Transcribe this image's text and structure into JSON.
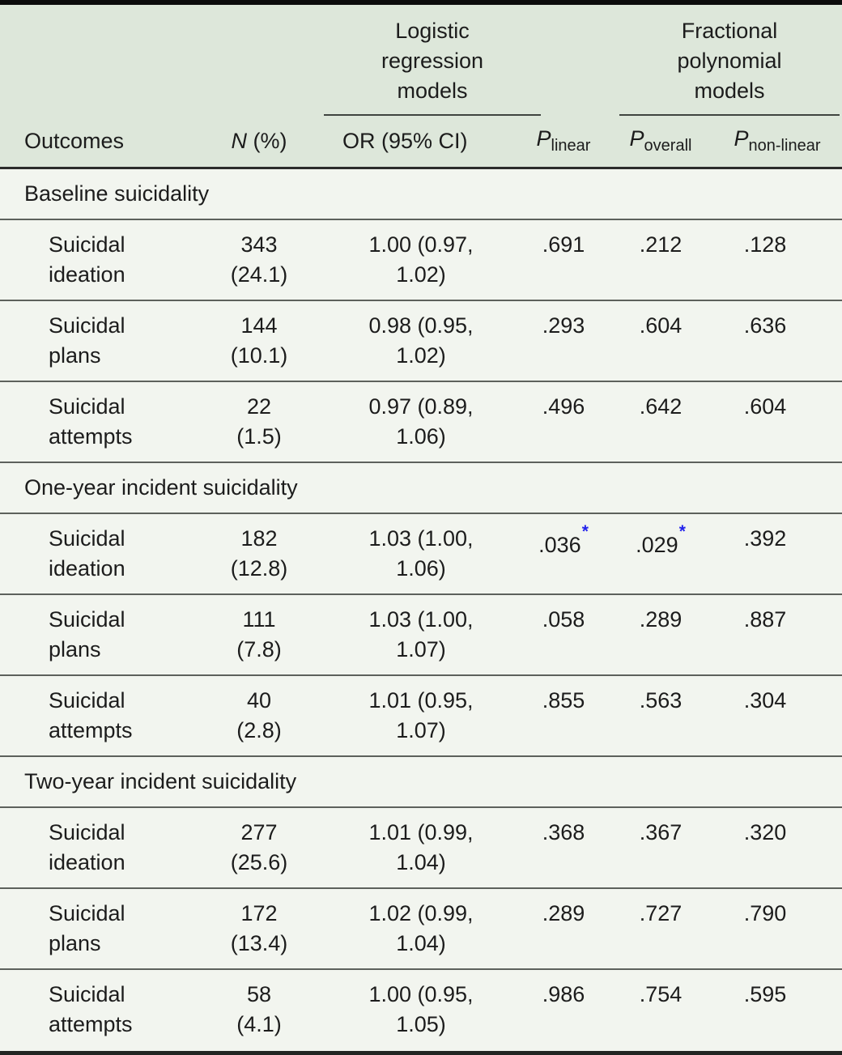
{
  "colors": {
    "header_bg": "#dde7da",
    "body_bg": "#f2f5ef",
    "significance_star": "#2323ec",
    "rule_dark": "#2b2b2b",
    "rule_row": "#5d615c"
  },
  "header": {
    "spanner_logistic": "Logistic regression models",
    "spanner_fractional": "Fractional polynomial models",
    "col_outcomes": "Outcomes",
    "col_n_italic": "N",
    "col_n_rest": " (%)",
    "col_or": "OR (95% CI)",
    "col_p_linear": {
      "base": "P",
      "sub": "linear"
    },
    "col_p_overall": {
      "base": "P",
      "sub": "overall"
    },
    "col_p_nonlinear": {
      "base": "P",
      "sub": "non-linear"
    }
  },
  "sections": [
    {
      "title": "Baseline suicidality",
      "rows": [
        {
          "outcome": "Suicidal ideation",
          "n_lines": [
            "343",
            "(24.1)"
          ],
          "or_lines": [
            "1.00 (0.97,",
            "1.02)"
          ],
          "p_linear": {
            "value": ".691",
            "sig": false
          },
          "p_overall": {
            "value": ".212",
            "sig": false
          },
          "p_nonlinear": {
            "value": ".128",
            "sig": false
          }
        },
        {
          "outcome": "Suicidal plans",
          "n_lines": [
            "144",
            "(10.1)"
          ],
          "or_lines": [
            "0.98 (0.95,",
            "1.02)"
          ],
          "p_linear": {
            "value": ".293",
            "sig": false
          },
          "p_overall": {
            "value": ".604",
            "sig": false
          },
          "p_nonlinear": {
            "value": ".636",
            "sig": false
          }
        },
        {
          "outcome": "Suicidal attempts",
          "n_lines": [
            "22",
            "(1.5)"
          ],
          "or_lines": [
            "0.97 (0.89,",
            "1.06)"
          ],
          "p_linear": {
            "value": ".496",
            "sig": false
          },
          "p_overall": {
            "value": ".642",
            "sig": false
          },
          "p_nonlinear": {
            "value": ".604",
            "sig": false
          }
        }
      ]
    },
    {
      "title": "One-year incident suicidality",
      "rows": [
        {
          "outcome": "Suicidal ideation",
          "n_lines": [
            "182",
            "(12.8)"
          ],
          "or_lines": [
            "1.03 (1.00,",
            "1.06)"
          ],
          "p_linear": {
            "value": ".036",
            "sig": true
          },
          "p_overall": {
            "value": ".029",
            "sig": true
          },
          "p_nonlinear": {
            "value": ".392",
            "sig": false
          }
        },
        {
          "outcome": "Suicidal plans",
          "n_lines": [
            "111",
            "(7.8)"
          ],
          "or_lines": [
            "1.03 (1.00,",
            "1.07)"
          ],
          "p_linear": {
            "value": ".058",
            "sig": false
          },
          "p_overall": {
            "value": ".289",
            "sig": false
          },
          "p_nonlinear": {
            "value": ".887",
            "sig": false
          }
        },
        {
          "outcome": "Suicidal attempts",
          "n_lines": [
            "40",
            "(2.8)"
          ],
          "or_lines": [
            "1.01 (0.95,",
            "1.07)"
          ],
          "p_linear": {
            "value": ".855",
            "sig": false
          },
          "p_overall": {
            "value": ".563",
            "sig": false
          },
          "p_nonlinear": {
            "value": ".304",
            "sig": false
          }
        }
      ]
    },
    {
      "title": "Two-year incident suicidality",
      "rows": [
        {
          "outcome": "Suicidal ideation",
          "n_lines": [
            "277",
            "(25.6)"
          ],
          "or_lines": [
            "1.01 (0.99,",
            "1.04)"
          ],
          "p_linear": {
            "value": ".368",
            "sig": false
          },
          "p_overall": {
            "value": ".367",
            "sig": false
          },
          "p_nonlinear": {
            "value": ".320",
            "sig": false
          }
        },
        {
          "outcome": "Suicidal plans",
          "n_lines": [
            "172",
            "(13.4)"
          ],
          "or_lines": [
            "1.02 (0.99,",
            "1.04)"
          ],
          "p_linear": {
            "value": ".289",
            "sig": false
          },
          "p_overall": {
            "value": ".727",
            "sig": false
          },
          "p_nonlinear": {
            "value": ".790",
            "sig": false
          }
        },
        {
          "outcome": "Suicidal attempts",
          "n_lines": [
            "58",
            "(4.1)"
          ],
          "or_lines": [
            "1.00 (0.95,",
            "1.05)"
          ],
          "p_linear": {
            "value": ".986",
            "sig": false
          },
          "p_overall": {
            "value": ".754",
            "sig": false
          },
          "p_nonlinear": {
            "value": ".595",
            "sig": false
          }
        }
      ]
    }
  ],
  "significance_marker": "*"
}
